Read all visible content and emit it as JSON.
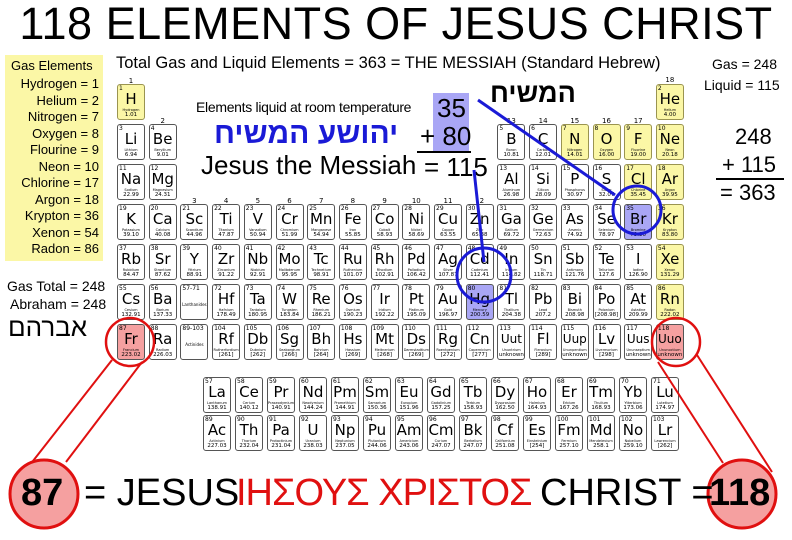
{
  "title": "118 ELEMENTS OF JESUS CHRIST",
  "subtitle": "Total Gas and Liquid Elements = 363 = THE MESSIAH (Standard Hebrew)",
  "gas_box": {
    "heading": "Gas Elements",
    "items": [
      "Hydrogen = 1",
      "Helium = 2",
      "Nitrogen = 7",
      "Oxygen = 8",
      "Flourine = 9",
      "Neon = 10",
      "Chlorine = 17",
      "Argon = 18",
      "Krypton = 36",
      "Xenon = 54",
      "Radon = 86"
    ]
  },
  "top_right": {
    "gas": "Gas = 248",
    "liquid": "Liquid = 115"
  },
  "right_sum": {
    "a": "248",
    "b": "+ 115",
    "c": "= 363"
  },
  "left_notes": {
    "gas_total": "Gas Total = 248",
    "abraham": "Abraham = 248",
    "abraham_hebrew": "אברהם"
  },
  "hamashiach_hebrew": "המשיח",
  "liquid_label": "Elements liquid at room temperature",
  "liquid_sum": {
    "a": "35",
    "b": "+ 80",
    "c": "= 115"
  },
  "yeshua_hebrew": "יהושע המשיח",
  "jesus_messiah": "Jesus the Messiah",
  "bottom": {
    "n87": "87",
    "eq_jesus": "= JESUS",
    "greek": "ΙΗΣΟΥΣ ΧΡΙΣΤΟΣ",
    "christ_eq": "CHRIST =",
    "n118": "118"
  },
  "colors": {
    "gas": "#fbf7a6",
    "liquid": "#a9a6f5",
    "highlight": "#f5a0a0",
    "blue": "#1a1ad6",
    "red": "#e01010"
  },
  "group_labels": [
    "1",
    "2",
    "3",
    "4",
    "5",
    "6",
    "7",
    "8",
    "9",
    "10",
    "11",
    "12",
    "13",
    "14",
    "15",
    "16",
    "17",
    "18"
  ],
  "placeholders": {
    "lan_range": "57-71",
    "lan_label": "Lanthanides",
    "act_range": "89-103",
    "act_label": "Actinides"
  },
  "elements": [
    [
      1,
      "H",
      "Hydrogen",
      "1.01",
      "gas"
    ],
    [
      2,
      "He",
      "Helium",
      "4.00",
      "gas"
    ],
    [
      3,
      "Li",
      "Lithium",
      "6.94",
      ""
    ],
    [
      4,
      "Be",
      "Beryllium",
      "9.01",
      ""
    ],
    [
      5,
      "B",
      "Boron",
      "10.81",
      ""
    ],
    [
      6,
      "C",
      "Carbon",
      "12.01",
      ""
    ],
    [
      7,
      "N",
      "Nitrogen",
      "14.01",
      "gas"
    ],
    [
      8,
      "O",
      "Oxygen",
      "16.00",
      "gas"
    ],
    [
      9,
      "F",
      "Fluorine",
      "19.00",
      "gas"
    ],
    [
      10,
      "Ne",
      "Neon",
      "20.18",
      "gas"
    ],
    [
      11,
      "Na",
      "Sodium",
      "22.99",
      ""
    ],
    [
      12,
      "Mg",
      "Magnesium",
      "24.31",
      ""
    ],
    [
      13,
      "Al",
      "Aluminum",
      "26.98",
      ""
    ],
    [
      14,
      "Si",
      "Silicon",
      "28.09",
      ""
    ],
    [
      15,
      "P",
      "Phosphorus",
      "30.97",
      ""
    ],
    [
      16,
      "S",
      "Sulfur",
      "32.07",
      ""
    ],
    [
      17,
      "Cl",
      "Chlorine",
      "35.45",
      "gas"
    ],
    [
      18,
      "Ar",
      "Argon",
      "39.95",
      "gas"
    ],
    [
      19,
      "K",
      "Potassium",
      "39.10",
      ""
    ],
    [
      20,
      "Ca",
      "Calcium",
      "40.08",
      ""
    ],
    [
      21,
      "Sc",
      "Scandium",
      "44.96",
      ""
    ],
    [
      22,
      "Ti",
      "Titanium",
      "47.87",
      ""
    ],
    [
      23,
      "V",
      "Vanadium",
      "50.94",
      ""
    ],
    [
      24,
      "Cr",
      "Chromium",
      "51.99",
      ""
    ],
    [
      25,
      "Mn",
      "Manganese",
      "54.94",
      ""
    ],
    [
      26,
      "Fe",
      "Iron",
      "55.85",
      ""
    ],
    [
      27,
      "Co",
      "Cobalt",
      "58.93",
      ""
    ],
    [
      28,
      "Ni",
      "Nickel",
      "58.69",
      ""
    ],
    [
      29,
      "Cu",
      "Copper",
      "63.55",
      ""
    ],
    [
      30,
      "Zn",
      "Zinc",
      "65.38",
      ""
    ],
    [
      31,
      "Ga",
      "Gallium",
      "69.72",
      ""
    ],
    [
      32,
      "Ge",
      "Germanium",
      "72.63",
      ""
    ],
    [
      33,
      "As",
      "Arsenic",
      "74.92",
      ""
    ],
    [
      34,
      "Se",
      "Selenium",
      "78.97",
      ""
    ],
    [
      35,
      "Br",
      "Bromine",
      "79.90",
      "liquid"
    ],
    [
      36,
      "Kr",
      "Krypton",
      "83.80",
      "gas"
    ],
    [
      37,
      "Rb",
      "Rubidium",
      "84.47",
      ""
    ],
    [
      38,
      "Sr",
      "Strontium",
      "87.62",
      ""
    ],
    [
      39,
      "Y",
      "Yttrium",
      "88.91",
      ""
    ],
    [
      40,
      "Zr",
      "Zirconium",
      "91.22",
      ""
    ],
    [
      41,
      "Nb",
      "Niobium",
      "92.91",
      ""
    ],
    [
      42,
      "Mo",
      "Molibdenum",
      "95.95",
      ""
    ],
    [
      43,
      "Tc",
      "Technetium",
      "98.91",
      ""
    ],
    [
      44,
      "Ru",
      "Ruthenium",
      "101.07",
      ""
    ],
    [
      45,
      "Rh",
      "Rhodium",
      "102.91",
      ""
    ],
    [
      46,
      "Pd",
      "Palladium",
      "106.42",
      ""
    ],
    [
      47,
      "Ag",
      "Silver",
      "107.87",
      ""
    ],
    [
      48,
      "Cd",
      "Cadmium",
      "112.41",
      ""
    ],
    [
      49,
      "In",
      "Indium",
      "114.82",
      ""
    ],
    [
      50,
      "Sn",
      "Tin",
      "118.71",
      ""
    ],
    [
      51,
      "Sb",
      "Antimony",
      "121.76",
      ""
    ],
    [
      52,
      "Te",
      "Tellurium",
      "127.6",
      ""
    ],
    [
      53,
      "I",
      "Iodine",
      "126.90",
      ""
    ],
    [
      54,
      "Xe",
      "Xenon",
      "131.29",
      "gas"
    ],
    [
      55,
      "Cs",
      "Cesium",
      "132.91",
      ""
    ],
    [
      56,
      "Ba",
      "Barium",
      "137.33",
      ""
    ],
    [
      57,
      "La",
      "Lanthanum",
      "138.91",
      ""
    ],
    [
      58,
      "Ce",
      "Cerium",
      "140.12",
      ""
    ],
    [
      59,
      "Pr",
      "Praseodymium",
      "140.91",
      ""
    ],
    [
      60,
      "Nd",
      "Neodymium",
      "144.24",
      ""
    ],
    [
      61,
      "Pm",
      "Promethium",
      "144.91",
      ""
    ],
    [
      62,
      "Sm",
      "Samarium",
      "150.36",
      ""
    ],
    [
      63,
      "Eu",
      "Europium",
      "151.96",
      ""
    ],
    [
      64,
      "Gd",
      "Gadolinium",
      "157.25",
      ""
    ],
    [
      65,
      "Tb",
      "Terbium",
      "158.93",
      ""
    ],
    [
      66,
      "Dy",
      "Dysprosium",
      "162.50",
      ""
    ],
    [
      67,
      "Ho",
      "Holmium",
      "164.93",
      ""
    ],
    [
      68,
      "Er",
      "Erbium",
      "167.26",
      ""
    ],
    [
      69,
      "Tm",
      "Thulium",
      "168.93",
      ""
    ],
    [
      70,
      "Yb",
      "Ytterbium",
      "173.06",
      ""
    ],
    [
      71,
      "Lu",
      "Lutetium",
      "174.97",
      ""
    ],
    [
      72,
      "Hf",
      "Hafnium",
      "178.49",
      ""
    ],
    [
      73,
      "Ta",
      "Tantalum",
      "180.95",
      ""
    ],
    [
      74,
      "W",
      "Tungsten",
      "183.84",
      ""
    ],
    [
      75,
      "Re",
      "Rhenium",
      "186.21",
      ""
    ],
    [
      76,
      "Os",
      "Osmium",
      "190.23",
      ""
    ],
    [
      77,
      "Ir",
      "Iridium",
      "192.22",
      ""
    ],
    [
      78,
      "Pt",
      "Platinum",
      "195.09",
      ""
    ],
    [
      79,
      "Au",
      "Gold",
      "196.97",
      ""
    ],
    [
      80,
      "Hg",
      "Mercury",
      "200.59",
      "liquid"
    ],
    [
      81,
      "Tl",
      "Thallium",
      "204.38",
      ""
    ],
    [
      82,
      "Pb",
      "Lead",
      "207.2",
      ""
    ],
    [
      83,
      "Bi",
      "Bismuth",
      "208.98",
      ""
    ],
    [
      84,
      "Po",
      "Polonium",
      "[208.98]",
      ""
    ],
    [
      85,
      "At",
      "Astatine",
      "209.99",
      ""
    ],
    [
      86,
      "Rn",
      "Radon",
      "222.02",
      "gas"
    ],
    [
      87,
      "Fr",
      "Francium",
      "223.02",
      "highlight"
    ],
    [
      88,
      "Ra",
      "Radium",
      "226.03",
      ""
    ],
    [
      89,
      "Ac",
      "Actinium",
      "227.03",
      ""
    ],
    [
      90,
      "Th",
      "Thorium",
      "232.04",
      ""
    ],
    [
      91,
      "Pa",
      "Protactinium",
      "231.04",
      ""
    ],
    [
      92,
      "U",
      "Uranium",
      "238.03",
      ""
    ],
    [
      93,
      "Np",
      "Neptunium",
      "237.05",
      ""
    ],
    [
      94,
      "Pu",
      "Plutonium",
      "244.06",
      ""
    ],
    [
      95,
      "Am",
      "Americium",
      "243.06",
      ""
    ],
    [
      96,
      "Cm",
      "Curium",
      "247.07",
      ""
    ],
    [
      97,
      "Bk",
      "Berkelium",
      "247.07",
      ""
    ],
    [
      98,
      "Cf",
      "Californium",
      "251.08",
      ""
    ],
    [
      99,
      "Es",
      "Einsteinium",
      "[254]",
      ""
    ],
    [
      100,
      "Fm",
      "Fermium",
      "257.10",
      ""
    ],
    [
      101,
      "Md",
      "Mendelevium",
      "258.1",
      ""
    ],
    [
      102,
      "No",
      "Nobelium",
      "259.10",
      ""
    ],
    [
      103,
      "Lr",
      "Lawrencium",
      "[262]",
      ""
    ],
    [
      104,
      "Rf",
      "Rutherfordium",
      "[261]",
      ""
    ],
    [
      105,
      "Db",
      "Dubnium",
      "[262]",
      ""
    ],
    [
      106,
      "Sg",
      "Seaborgium",
      "[266]",
      ""
    ],
    [
      107,
      "Bh",
      "Bohrium",
      "[264]",
      ""
    ],
    [
      108,
      "Hs",
      "Hassium",
      "[269]",
      ""
    ],
    [
      109,
      "Mt",
      "Meitnerium",
      "[268]",
      ""
    ],
    [
      110,
      "Ds",
      "Darmstadtium",
      "[269]",
      ""
    ],
    [
      111,
      "Rg",
      "Roentgenium",
      "[272]",
      ""
    ],
    [
      112,
      "Cn",
      "Copernicium",
      "[277]",
      ""
    ],
    [
      113,
      "Uut",
      "Ununtrium",
      "unknown",
      ""
    ],
    [
      114,
      "Fl",
      "Flerovium",
      "[289]",
      ""
    ],
    [
      115,
      "Uup",
      "Ununpentium",
      "unknown",
      ""
    ],
    [
      116,
      "Lv",
      "Livermorium",
      "[298]",
      ""
    ],
    [
      117,
      "Uus",
      "Ununseptium",
      "unknown",
      ""
    ],
    [
      118,
      "Uuo",
      "Ununoctium",
      "unknown",
      "highlight"
    ]
  ]
}
